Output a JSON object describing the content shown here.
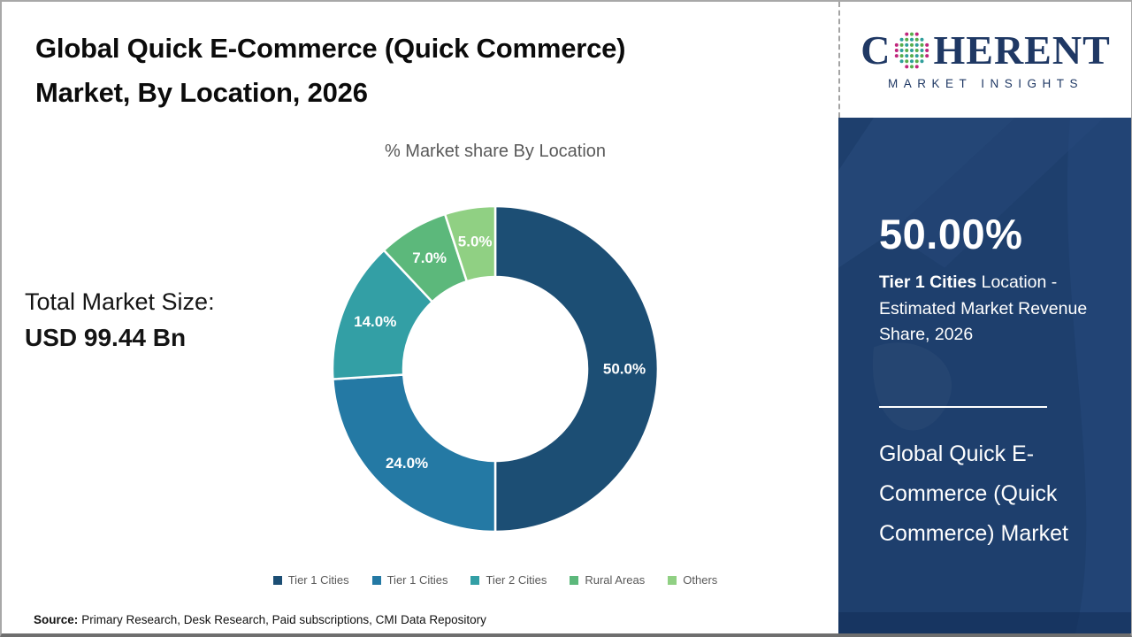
{
  "page": {
    "title_line1": "Global Quick E-Commerce (Quick Commerce)",
    "title_line2": "Market, By Location, 2026"
  },
  "chart_data": {
    "type": "pie",
    "subtype": "donut",
    "title": "% Market share By Location",
    "legend_position": "bottom",
    "start_angle_deg": 0,
    "direction": "clockwise",
    "slices": [
      {
        "label": "Tier 1 Cities",
        "value": 50.0,
        "display": "50.0%",
        "color": "#1c4e74"
      },
      {
        "label": "Tier 1 Cities",
        "value": 24.0,
        "display": "24.0%",
        "color": "#2479a4"
      },
      {
        "label": "Tier 2 Cities",
        "value": 14.0,
        "display": "14.0%",
        "color": "#339fa5"
      },
      {
        "label": "Rural Areas",
        "value": 7.0,
        "display": "7.0%",
        "color": "#5cb87b"
      },
      {
        "label": "Others",
        "value": 5.0,
        "display": "5.0%",
        "color": "#90d083"
      }
    ]
  },
  "stats": {
    "total_label": "Total Market Size:",
    "total_value": "USD 99.44 Bn"
  },
  "footer": {
    "source_label": "Source:",
    "source_text": "Primary Research, Desk Research, Paid subscriptions, CMI Data Repository"
  },
  "sidebar": {
    "logo_c": "C",
    "logo_rest": "HERENT",
    "logo_subtitle": "MARKET INSIGHTS",
    "highlight_value": "50.00%",
    "highlight_segment": "Tier 1 Cities",
    "highlight_desc": " Location - Estimated Market Revenue Share, 2026",
    "market_name": "Global Quick E-Commerce (Quick Commerce) Market"
  },
  "colors": {
    "sidebar_bg": "#1e3f6d",
    "logo_navy": "#1f3864",
    "muted_text": "#595959",
    "globe_magenta": "#c0267c",
    "globe_teal": "#2f9e9b",
    "globe_green": "#58ad4c"
  }
}
